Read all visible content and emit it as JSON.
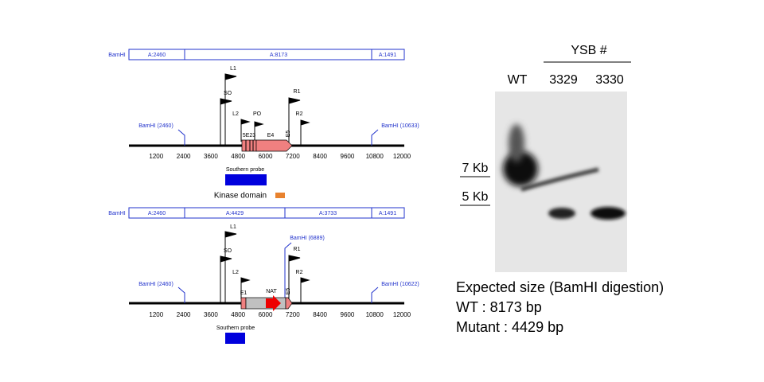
{
  "wild_type_map": {
    "fragment_label": "BamHI",
    "fragments": [
      "A:2460",
      "A:8173",
      "A:1491"
    ],
    "primers": {
      "L1": "L1",
      "SO": "SO",
      "L2": "L2",
      "PO": "PO",
      "R1": "R1",
      "R2": "R2"
    },
    "exons": {
      "small": "5E23",
      "E4": "E4",
      "E5": "E5"
    },
    "sites": {
      "left": "BamHI (2460)",
      "right": "BamHI (10633)"
    },
    "ticks": [
      1200,
      2400,
      3600,
      4800,
      6000,
      7200,
      8400,
      9600,
      10800,
      12000
    ],
    "probe": "Southern probe",
    "kinase": "Kinase domain"
  },
  "mutant_map": {
    "fragment_label": "BamHI",
    "fragments": [
      "A:2460",
      "A:4429",
      "A:3733",
      "A:1491"
    ],
    "primers": {
      "L1": "L1",
      "SO": "SO",
      "L2": "L2",
      "R1": "R1",
      "R2": "R2"
    },
    "exons": {
      "E1": "E1",
      "NAT": "NAT",
      "E5": "E5"
    },
    "sites": {
      "left": "BamHI (2460)",
      "middle": "BamHI (6889)",
      "right": "BamHI (10622)"
    },
    "ticks": [
      1200,
      2400,
      3600,
      4800,
      6000,
      7200,
      8400,
      9600,
      10800,
      12000
    ],
    "probe": "Southern probe"
  },
  "blot": {
    "group": "YSB #",
    "lanes": [
      "WT",
      "3329",
      "3330"
    ],
    "markers": [
      "7 Kb",
      "5 Kb"
    ]
  },
  "caption": [
    "Expected size (BamHI digestion)",
    "WT : 8173 bp",
    "Mutant : 4429 bp"
  ]
}
